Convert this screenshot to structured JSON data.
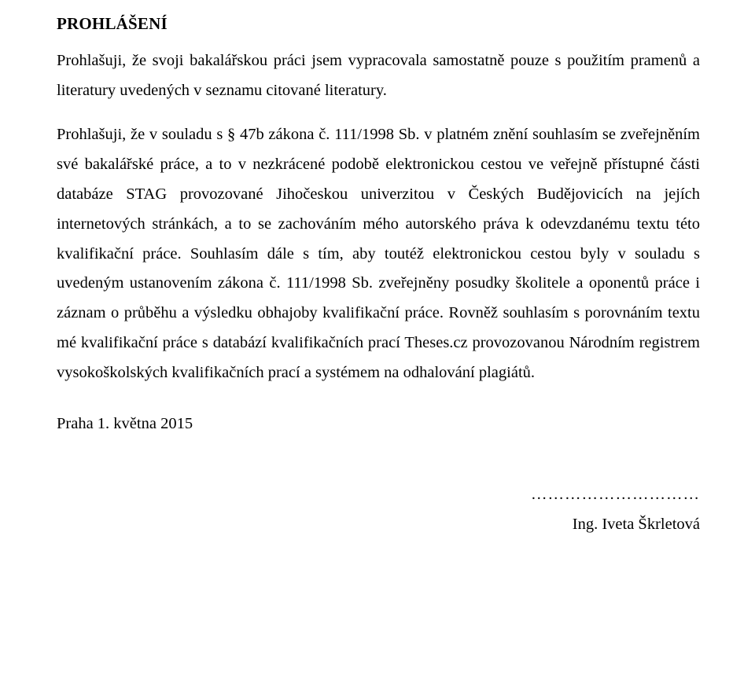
{
  "heading": "PROHLÁŠENÍ",
  "para1": "Prohlašuji, že svoji bakalářskou práci jsem vypracovala samostatně pouze s použitím pramenů a literatury uvedených v seznamu citované literatury.",
  "para2": "Prohlašuji, že v souladu s § 47b zákona č. 111/1998 Sb. v platném znění souhlasím se zveřejněním své bakalářské práce, a to v nezkrácené podobě elektronickou cestou ve veřejně přístupné části databáze STAG provozované Jihočeskou univerzitou v Českých Budějovicích na jejích internetových stránkách, a to se zachováním mého autorského práva k odevzdanému textu této kvalifikační práce. Souhlasím dále s tím, aby toutéž elektronickou cestou byly v souladu s uvedeným ustanovením zákona č. 111/1998 Sb. zveřejněny posudky školitele a oponentů práce i záznam o průběhu a výsledku obhajoby kvalifikační práce. Rovněž souhlasím s porovnáním textu mé kvalifikační práce s databází kvalifikačních prací Theses.cz provozovanou Národním registrem vysokoškolských kvalifikačních prací a systémem na odhalování plagiátů.",
  "date": "Praha 1. května 2015",
  "dots": "…………………………",
  "signature": "Ing. Iveta Škrletová",
  "colors": {
    "text": "#000000",
    "background": "#ffffff"
  },
  "typography": {
    "family": "Times New Roman",
    "heading_size_pt": 16,
    "body_size_pt": 15.5,
    "heading_weight": "bold",
    "body_weight": "normal",
    "line_height": 1.85,
    "alignment": "justify"
  }
}
